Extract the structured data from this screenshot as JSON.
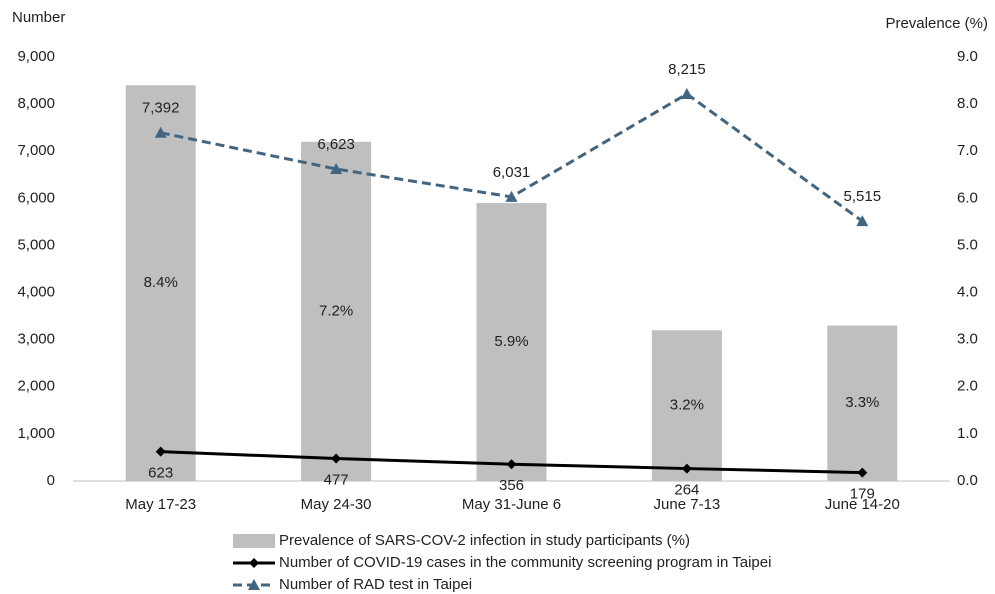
{
  "chart_data": {
    "type": "combo",
    "y_label": "Number",
    "y2_label": "Prevalence (%)",
    "categories": [
      "May 17-23",
      "May 24-30",
      "May 31-June 6",
      "June 7-13",
      "June 14-20"
    ],
    "ylim": [
      0,
      9000
    ],
    "yticks": [
      0,
      {
        "value": 1000,
        "label": "1,000"
      },
      {
        "value": 2000,
        "label": "2,000"
      },
      {
        "value": 3000,
        "label": "3,000"
      },
      {
        "value": 4000,
        "label": "4,000"
      },
      {
        "value": 5000,
        "label": "5,000"
      },
      {
        "value": 6000,
        "label": "6,000"
      },
      {
        "value": 7000,
        "label": "7,000"
      },
      {
        "value": 8000,
        "label": "8,000"
      },
      {
        "value": 9000,
        "label": "9,000"
      }
    ],
    "y2lim": [
      0,
      9
    ],
    "y2ticks": [
      {
        "value": 0,
        "label": "0.0"
      },
      {
        "value": 1,
        "label": "1.0"
      },
      {
        "value": 2,
        "label": "2.0"
      },
      {
        "value": 3,
        "label": "3.0"
      },
      {
        "value": 4,
        "label": "4.0"
      },
      {
        "value": 5,
        "label": "5.0"
      },
      {
        "value": 6,
        "label": "6.0"
      },
      {
        "value": 7,
        "label": "7.0"
      },
      {
        "value": 8,
        "label": "8.0"
      },
      {
        "value": 9,
        "label": "9.0"
      }
    ],
    "grid": false,
    "legend": "bottom",
    "series": [
      {
        "name": "Prevalence of SARS-COV-2 infection in study participants (%)",
        "type": "bar",
        "axis": "y2",
        "color": "#bfbfbf",
        "values": [
          8.4,
          7.2,
          5.9,
          3.2,
          3.3
        ],
        "value_labels": [
          "8.4%",
          "7.2%",
          "5.9%",
          "3.2%",
          "3.3%"
        ]
      },
      {
        "name": "Number of COVID-19 cases in the community screening program in Taipei",
        "type": "line",
        "color": "#000000",
        "marker": "diamond",
        "dashed": false,
        "label_position": "below",
        "values": [
          623,
          477,
          356,
          264,
          179
        ]
      },
      {
        "name": "Number of RAD test in Taipei",
        "type": "line",
        "color": "#44657f",
        "marker": "triangle",
        "dashed": true,
        "label_position": "above",
        "values": [
          7392,
          6623,
          6031,
          8215,
          5515
        ],
        "value_labels": [
          "7,392",
          "6,623",
          "6,031",
          "8,215",
          "5,515"
        ]
      }
    ]
  }
}
